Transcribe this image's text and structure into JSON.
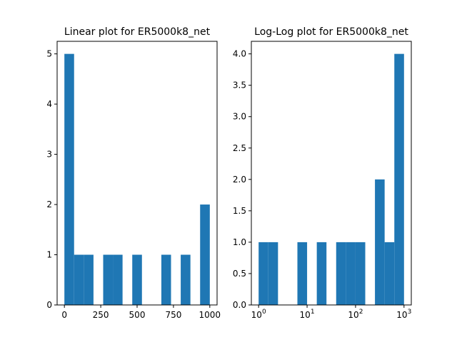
{
  "chart_data": [
    {
      "type": "bar",
      "title": "Linear plot for ER5000k8_net",
      "xlabel": "",
      "ylabel": "",
      "xlim": [
        -50,
        1050
      ],
      "ylim": [
        0,
        5.25
      ],
      "xscale": "linear",
      "xticks": [
        0,
        250,
        500,
        750,
        1000
      ],
      "xtick_labels": [
        "0",
        "250",
        "500",
        "750",
        "1000"
      ],
      "yticks": [
        0,
        1,
        2,
        3,
        4,
        5
      ],
      "ytick_labels": [
        "0",
        "1",
        "2",
        "3",
        "4",
        "5"
      ],
      "color": "#1f77b4",
      "bins": [
        {
          "x0": 0,
          "x1": 66.7,
          "count": 5
        },
        {
          "x0": 66.7,
          "x1": 133.3,
          "count": 1
        },
        {
          "x0": 133.3,
          "x1": 200,
          "count": 1
        },
        {
          "x0": 266.7,
          "x1": 333.3,
          "count": 1
        },
        {
          "x0": 333.3,
          "x1": 400,
          "count": 1
        },
        {
          "x0": 466.7,
          "x1": 533.3,
          "count": 1
        },
        {
          "x0": 666.7,
          "x1": 733.3,
          "count": 1
        },
        {
          "x0": 800,
          "x1": 866.7,
          "count": 1
        },
        {
          "x0": 933.3,
          "x1": 1000,
          "count": 2
        }
      ]
    },
    {
      "type": "bar",
      "title": "Log-Log plot for ER5000k8_net",
      "xlabel": "",
      "ylabel": "",
      "xscale": "log",
      "xlim": [
        0.7079,
        1413
      ],
      "ylim": [
        0,
        4.2
      ],
      "xticks": [
        1,
        10,
        100,
        1000
      ],
      "xtick_labels": [
        {
          "base": "10",
          "exp": "0"
        },
        {
          "base": "10",
          "exp": "1"
        },
        {
          "base": "10",
          "exp": "2"
        },
        {
          "base": "10",
          "exp": "3"
        }
      ],
      "yticks": [
        0,
        0.5,
        1,
        1.5,
        2,
        2.5,
        3,
        3.5,
        4
      ],
      "ytick_labels": [
        "0.0",
        "0.5",
        "1.0",
        "1.5",
        "2.0",
        "2.5",
        "3.0",
        "3.5",
        "4.0"
      ],
      "color": "#1f77b4",
      "bins": [
        {
          "x0": 1,
          "x1": 1.585,
          "count": 1
        },
        {
          "x0": 1.585,
          "x1": 2.512,
          "count": 1
        },
        {
          "x0": 6.31,
          "x1": 10,
          "count": 1
        },
        {
          "x0": 15.85,
          "x1": 25.12,
          "count": 1
        },
        {
          "x0": 39.81,
          "x1": 63.1,
          "count": 1
        },
        {
          "x0": 63.1,
          "x1": 100,
          "count": 1
        },
        {
          "x0": 100,
          "x1": 158.5,
          "count": 1
        },
        {
          "x0": 251.2,
          "x1": 398.1,
          "count": 2
        },
        {
          "x0": 398.1,
          "x1": 631,
          "count": 1
        },
        {
          "x0": 631,
          "x1": 1000,
          "count": 4
        }
      ]
    }
  ]
}
